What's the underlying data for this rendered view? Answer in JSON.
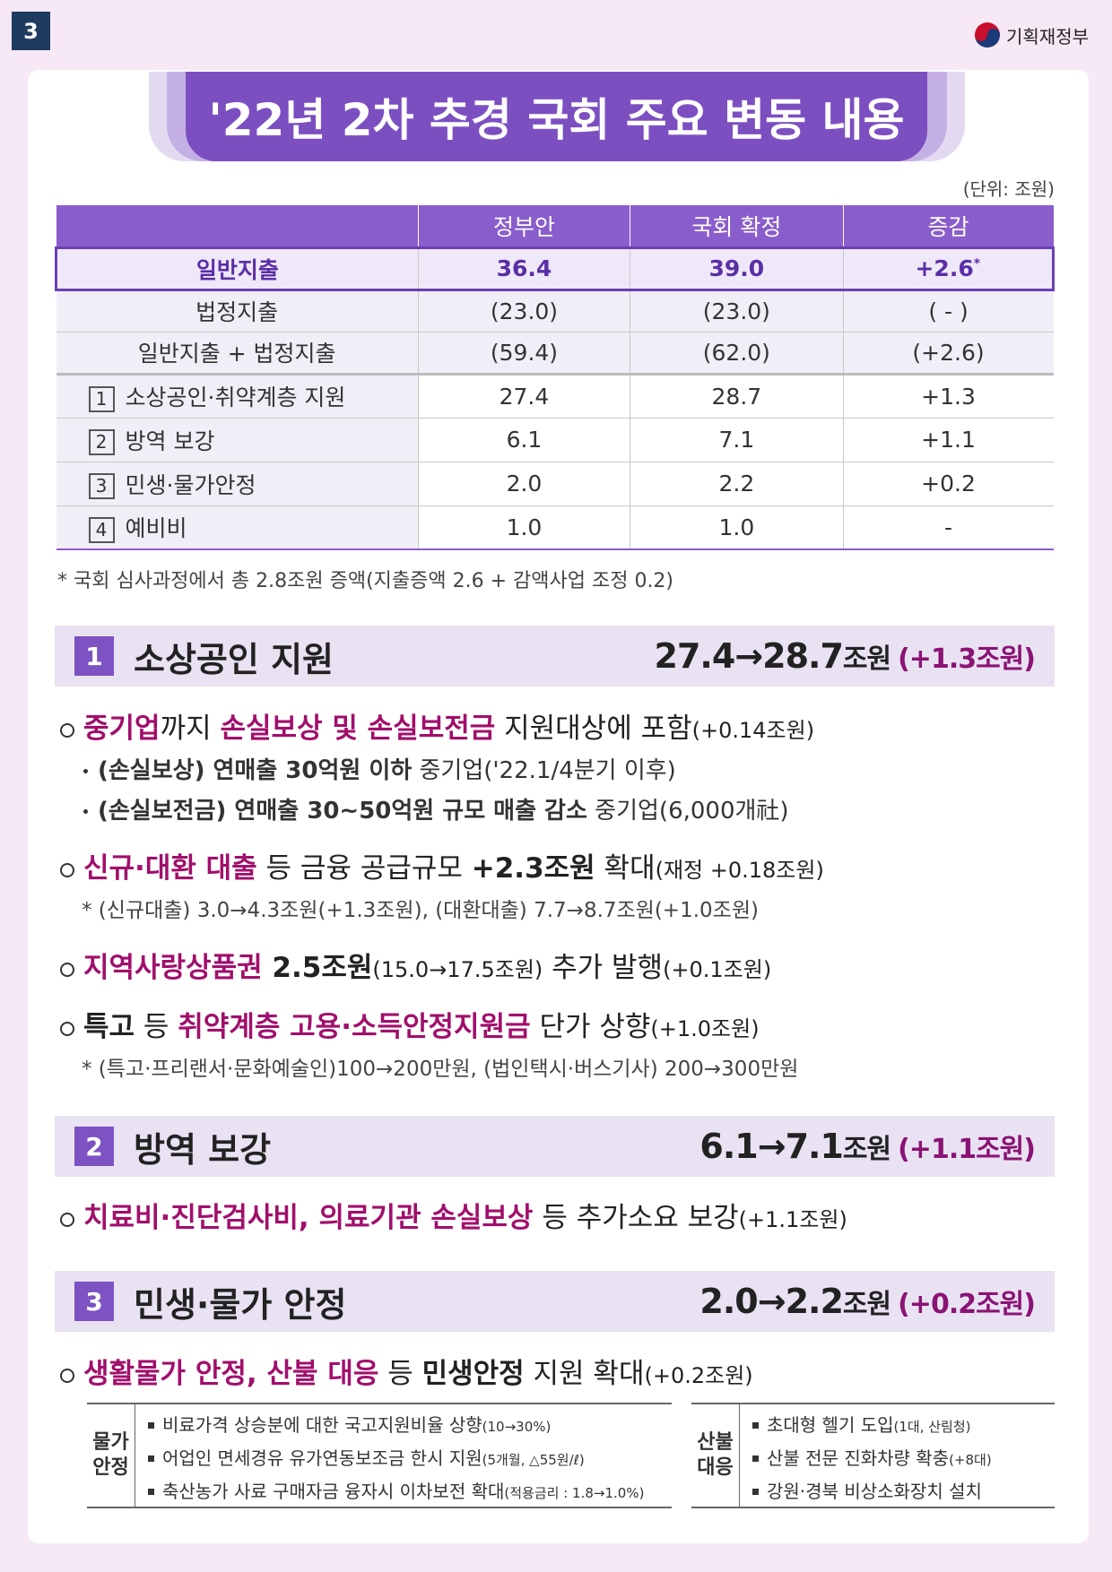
{
  "page_number": "3",
  "ministry": "기획재정부",
  "title": "'22년 2차 추경 국회 주요 변동 내용",
  "unit_note": "(단위: 조원)",
  "table": {
    "header": [
      "정부안",
      "국회 확정",
      "증감"
    ],
    "rows": [
      {
        "label": "일반지출",
        "cells": [
          "36.4",
          "39.0",
          "+2.6"
        ],
        "mark": "*"
      },
      {
        "label": "법정지출",
        "cells": [
          "(23.0)",
          "(23.0)",
          "(   -   )"
        ]
      },
      {
        "label": "일반지출 + 법정지출",
        "cells": [
          "(59.4)",
          "(62.0)",
          "(+2.6)"
        ]
      },
      {
        "num": "1",
        "label": "소상공인·취약계층 지원",
        "cells": [
          "27.4",
          "28.7",
          "+1.3"
        ]
      },
      {
        "num": "2",
        "label": "방역 보강",
        "cells": [
          "6.1",
          "7.1",
          "+1.1"
        ]
      },
      {
        "num": "3",
        "label": "민생·물가안정",
        "cells": [
          "2.0",
          "2.2",
          "+0.2"
        ]
      },
      {
        "num": "4",
        "label": "예비비",
        "cells": [
          "1.0",
          "1.0",
          "-"
        ]
      }
    ],
    "footnote": "* 국회 심사과정에서 총 2.8조원 증액(지출증액 2.6 + 감액사업 조정 0.2)"
  },
  "sections": [
    {
      "num": "1",
      "title": "소상공인 지원",
      "summary": {
        "from": "27.4",
        "arrow": "→",
        "to": "28.7",
        "unit": "조원",
        "change": "(+1.3조원)"
      },
      "items": [
        {
          "runs": [
            {
              "t": "중기업",
              "s": "hl"
            },
            {
              "t": "까지 "
            },
            {
              "t": "손실보상 및 손실보전금",
              "s": "hl"
            },
            {
              "t": " 지원대상에 포함"
            },
            {
              "t": "(+0.14조원)",
              "s": "sm"
            }
          ],
          "subs": [
            [
              {
                "t": "(손실보상) 연매출 30억원 이하",
                "s": "b"
              },
              {
                "t": " 중기업('22.1/4분기 이후)"
              }
            ],
            [
              {
                "t": "(손실보전금) 연매출 30~50억원 규모 매출 감소",
                "s": "b"
              },
              {
                "t": " 중기업(6,000개社)"
              }
            ]
          ]
        },
        {
          "runs": [
            {
              "t": "신규·대환 대출",
              "s": "hl"
            },
            {
              "t": " 등 금융 공급규모 "
            },
            {
              "t": "+2.3조원",
              "s": "b"
            },
            {
              "t": " 확대"
            },
            {
              "t": "(재정 +0.18조원)",
              "s": "sm"
            }
          ],
          "note": "* (신규대출) 3.0→4.3조원(+1.3조원), (대환대출) 7.7→8.7조원(+1.0조원)"
        },
        {
          "runs": [
            {
              "t": "지역사랑상품권",
              "s": "hl"
            },
            {
              "t": " 2.5조원",
              "s": "b"
            },
            {
              "t": "(15.0→17.5조원)",
              "s": "sm"
            },
            {
              "t": " 추가 발행"
            },
            {
              "t": "(+0.1조원)",
              "s": "sm"
            }
          ]
        },
        {
          "runs": [
            {
              "t": "특고",
              "s": "b"
            },
            {
              "t": " 등 "
            },
            {
              "t": "취약계층 고용·소득안정지원금",
              "s": "hl"
            },
            {
              "t": " 단가 상향"
            },
            {
              "t": "(+1.0조원)",
              "s": "sm"
            }
          ],
          "note": "* (특고·프리랜서·문화예술인)100→200만원, (법인택시·버스기사) 200→300만원"
        }
      ]
    },
    {
      "num": "2",
      "title": "방역 보강",
      "summary": {
        "from": "6.1",
        "arrow": "→",
        "to": "7.1",
        "unit": "조원",
        "change": "(+1.1조원)"
      },
      "items": [
        {
          "runs": [
            {
              "t": "치료비·진단검사비, 의료기관 손실보상",
              "s": "hl"
            },
            {
              "t": " 등 추가소요 보강"
            },
            {
              "t": "(+1.1조원)",
              "s": "sm"
            }
          ]
        }
      ]
    },
    {
      "num": "3",
      "title": "민생·물가 안정",
      "summary": {
        "from": "2.0",
        "arrow": "→",
        "to": "2.2",
        "unit": "조원",
        "change": "(+0.2조원)"
      },
      "items": [
        {
          "runs": [
            {
              "t": "생활물가 안정, 산불 대응",
              "s": "hl"
            },
            {
              "t": " 등 "
            },
            {
              "t": "민생안정",
              "s": "b"
            },
            {
              "t": " 지원 확대"
            },
            {
              "t": "(+0.2조원)",
              "s": "sm"
            }
          ]
        }
      ],
      "boxes": [
        {
          "label": [
            "물가",
            "안정"
          ],
          "items": [
            [
              {
                "t": "비료가격 상승분에 대한 국고지원비율 상향"
              },
              {
                "t": "(10→30%)",
                "s": "xs"
              }
            ],
            [
              {
                "t": "어업인 면세경유 유가연동보조금 한시 지원"
              },
              {
                "t": "(5개월, △55원/ℓ)",
                "s": "xs"
              }
            ],
            [
              {
                "t": "축산농가 사료 구매자금 융자시 이차보전 확대"
              },
              {
                "t": "(적용금리 : 1.8→1.0%)",
                "s": "xs"
              }
            ]
          ]
        },
        {
          "label": [
            "산불",
            "대응"
          ],
          "items": [
            [
              {
                "t": "초대형 헬기 도입"
              },
              {
                "t": "(1대, 산림청)",
                "s": "xs"
              }
            ],
            [
              {
                "t": "산불 전문 진화차량 확충"
              },
              {
                "t": "(+8대)",
                "s": "xs"
              }
            ],
            [
              {
                "t": "강원·경북 비상소화장치 설치"
              }
            ]
          ]
        }
      ]
    }
  ]
}
